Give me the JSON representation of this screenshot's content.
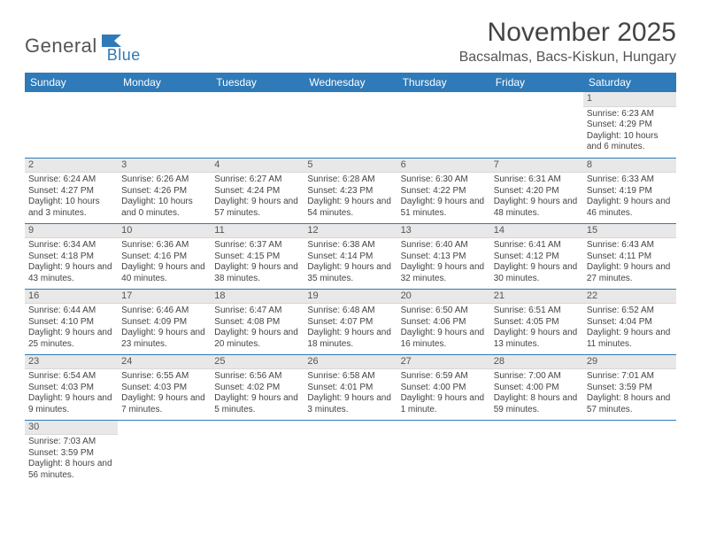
{
  "logo": {
    "part1": "General",
    "part2": "Blue"
  },
  "title": "November 2025",
  "location": "Bacsalmas, Bacs-Kiskun, Hungary",
  "colors": {
    "header_bg": "#2f7ab8",
    "header_text": "#ffffff",
    "daynum_bg": "#e8e8e8",
    "row_divider": "#2f7ab8",
    "body_text": "#444444"
  },
  "weekdays": [
    "Sunday",
    "Monday",
    "Tuesday",
    "Wednesday",
    "Thursday",
    "Friday",
    "Saturday"
  ],
  "weeks": [
    [
      null,
      null,
      null,
      null,
      null,
      null,
      {
        "n": "1",
        "sr": "6:23 AM",
        "ss": "4:29 PM",
        "dl": "10 hours and 6 minutes."
      }
    ],
    [
      {
        "n": "2",
        "sr": "6:24 AM",
        "ss": "4:27 PM",
        "dl": "10 hours and 3 minutes."
      },
      {
        "n": "3",
        "sr": "6:26 AM",
        "ss": "4:26 PM",
        "dl": "10 hours and 0 minutes."
      },
      {
        "n": "4",
        "sr": "6:27 AM",
        "ss": "4:24 PM",
        "dl": "9 hours and 57 minutes."
      },
      {
        "n": "5",
        "sr": "6:28 AM",
        "ss": "4:23 PM",
        "dl": "9 hours and 54 minutes."
      },
      {
        "n": "6",
        "sr": "6:30 AM",
        "ss": "4:22 PM",
        "dl": "9 hours and 51 minutes."
      },
      {
        "n": "7",
        "sr": "6:31 AM",
        "ss": "4:20 PM",
        "dl": "9 hours and 48 minutes."
      },
      {
        "n": "8",
        "sr": "6:33 AM",
        "ss": "4:19 PM",
        "dl": "9 hours and 46 minutes."
      }
    ],
    [
      {
        "n": "9",
        "sr": "6:34 AM",
        "ss": "4:18 PM",
        "dl": "9 hours and 43 minutes."
      },
      {
        "n": "10",
        "sr": "6:36 AM",
        "ss": "4:16 PM",
        "dl": "9 hours and 40 minutes."
      },
      {
        "n": "11",
        "sr": "6:37 AM",
        "ss": "4:15 PM",
        "dl": "9 hours and 38 minutes."
      },
      {
        "n": "12",
        "sr": "6:38 AM",
        "ss": "4:14 PM",
        "dl": "9 hours and 35 minutes."
      },
      {
        "n": "13",
        "sr": "6:40 AM",
        "ss": "4:13 PM",
        "dl": "9 hours and 32 minutes."
      },
      {
        "n": "14",
        "sr": "6:41 AM",
        "ss": "4:12 PM",
        "dl": "9 hours and 30 minutes."
      },
      {
        "n": "15",
        "sr": "6:43 AM",
        "ss": "4:11 PM",
        "dl": "9 hours and 27 minutes."
      }
    ],
    [
      {
        "n": "16",
        "sr": "6:44 AM",
        "ss": "4:10 PM",
        "dl": "9 hours and 25 minutes."
      },
      {
        "n": "17",
        "sr": "6:46 AM",
        "ss": "4:09 PM",
        "dl": "9 hours and 23 minutes."
      },
      {
        "n": "18",
        "sr": "6:47 AM",
        "ss": "4:08 PM",
        "dl": "9 hours and 20 minutes."
      },
      {
        "n": "19",
        "sr": "6:48 AM",
        "ss": "4:07 PM",
        "dl": "9 hours and 18 minutes."
      },
      {
        "n": "20",
        "sr": "6:50 AM",
        "ss": "4:06 PM",
        "dl": "9 hours and 16 minutes."
      },
      {
        "n": "21",
        "sr": "6:51 AM",
        "ss": "4:05 PM",
        "dl": "9 hours and 13 minutes."
      },
      {
        "n": "22",
        "sr": "6:52 AM",
        "ss": "4:04 PM",
        "dl": "9 hours and 11 minutes."
      }
    ],
    [
      {
        "n": "23",
        "sr": "6:54 AM",
        "ss": "4:03 PM",
        "dl": "9 hours and 9 minutes."
      },
      {
        "n": "24",
        "sr": "6:55 AM",
        "ss": "4:03 PM",
        "dl": "9 hours and 7 minutes."
      },
      {
        "n": "25",
        "sr": "6:56 AM",
        "ss": "4:02 PM",
        "dl": "9 hours and 5 minutes."
      },
      {
        "n": "26",
        "sr": "6:58 AM",
        "ss": "4:01 PM",
        "dl": "9 hours and 3 minutes."
      },
      {
        "n": "27",
        "sr": "6:59 AM",
        "ss": "4:00 PM",
        "dl": "9 hours and 1 minute."
      },
      {
        "n": "28",
        "sr": "7:00 AM",
        "ss": "4:00 PM",
        "dl": "8 hours and 59 minutes."
      },
      {
        "n": "29",
        "sr": "7:01 AM",
        "ss": "3:59 PM",
        "dl": "8 hours and 57 minutes."
      }
    ],
    [
      {
        "n": "30",
        "sr": "7:03 AM",
        "ss": "3:59 PM",
        "dl": "8 hours and 56 minutes."
      },
      null,
      null,
      null,
      null,
      null,
      null
    ]
  ],
  "labels": {
    "sunrise": "Sunrise:",
    "sunset": "Sunset:",
    "daylight": "Daylight:"
  }
}
